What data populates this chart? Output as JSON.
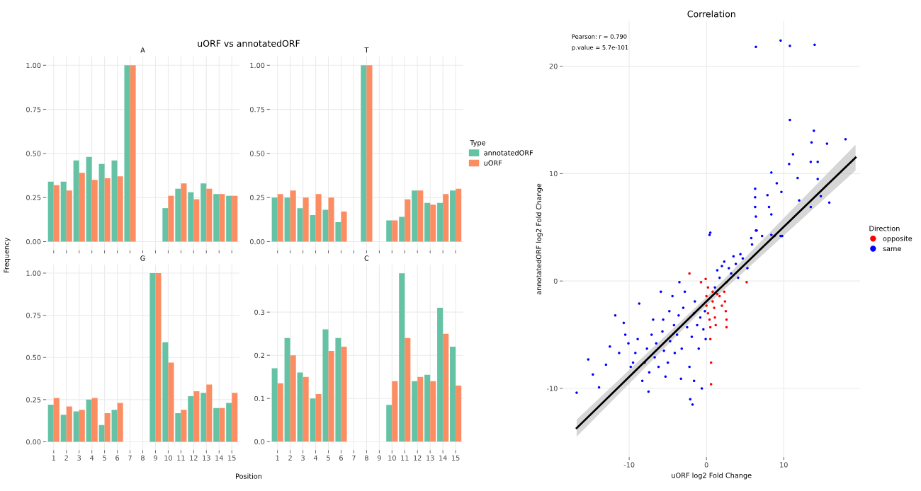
{
  "chart_data": [
    {
      "type": "bar",
      "title": "A",
      "annotations": [
        "uORF vs annotatedORF"
      ],
      "tick_labels": "y",
      "grid": true,
      "categories": [
        "1",
        "2",
        "3",
        "4",
        "5",
        "6",
        "7",
        "8",
        "9",
        "10",
        "11",
        "12",
        "13",
        "14",
        "15"
      ],
      "ylim": [
        -0.05,
        1.05
      ],
      "yticks": [
        {
          "value": 0,
          "label": "0.00"
        },
        {
          "value": 0.25,
          "label": "0.25"
        },
        {
          "value": 0.5,
          "label": "0.50"
        },
        {
          "value": 0.75,
          "label": "0.75"
        },
        {
          "value": 1,
          "label": "1.00"
        }
      ],
      "series": [
        {
          "color": "#66c2a5",
          "values": [
            0.34,
            0.34,
            0.46,
            0.48,
            0.44,
            0.46,
            1.0,
            null,
            null,
            0.19,
            0.3,
            0.28,
            0.33,
            0.27,
            0.26
          ]
        },
        {
          "color": "#fc8d62",
          "values": [
            0.32,
            0.29,
            0.39,
            0.35,
            0.36,
            0.37,
            1.0,
            null,
            null,
            0.26,
            0.33,
            0.24,
            0.3,
            0.27,
            0.26
          ]
        }
      ]
    },
    {
      "type": "bar",
      "title": "T",
      "tick_labels": "y",
      "grid": true,
      "legend": "right",
      "legend_title": "Type",
      "categories": [
        "1",
        "2",
        "3",
        "4",
        "5",
        "6",
        "7",
        "8",
        "9",
        "10",
        "11",
        "12",
        "13",
        "14",
        "15"
      ],
      "ylim": [
        -0.05,
        1.05
      ],
      "yticks": [
        {
          "value": 0,
          "label": "0.00"
        },
        {
          "value": 0.25,
          "label": "0.25"
        },
        {
          "value": 0.5,
          "label": "0.50"
        },
        {
          "value": 0.75,
          "label": "0.75"
        },
        {
          "value": 1,
          "label": "1.00"
        }
      ],
      "series": [
        {
          "name": "annotatedORF",
          "color": "#66c2a5",
          "values": [
            0.25,
            0.25,
            0.19,
            0.15,
            0.18,
            0.11,
            null,
            1.0,
            null,
            0.12,
            0.14,
            0.29,
            0.22,
            0.22,
            0.29
          ]
        },
        {
          "name": "uORF",
          "color": "#fc8d62",
          "values": [
            0.27,
            0.29,
            0.25,
            0.27,
            0.25,
            0.17,
            null,
            1.0,
            null,
            0.12,
            0.24,
            0.29,
            0.21,
            0.27,
            0.3
          ]
        }
      ]
    },
    {
      "type": "bar",
      "title": "G",
      "xlabel": "Position",
      "ylabel": "Frequency",
      "grid": true,
      "categories": [
        "1",
        "2",
        "3",
        "4",
        "5",
        "6",
        "7",
        "8",
        "9",
        "10",
        "11",
        "12",
        "13",
        "14",
        "15"
      ],
      "ylim": [
        -0.05,
        1.05
      ],
      "yticks": [
        {
          "value": 0,
          "label": "0.00"
        },
        {
          "value": 0.25,
          "label": "0.25"
        },
        {
          "value": 0.5,
          "label": "0.50"
        },
        {
          "value": 0.75,
          "label": "0.75"
        },
        {
          "value": 1,
          "label": "1.00"
        }
      ],
      "series": [
        {
          "color": "#66c2a5",
          "values": [
            0.22,
            0.16,
            0.18,
            0.25,
            0.1,
            0.19,
            null,
            null,
            1.0,
            0.59,
            0.17,
            0.27,
            0.29,
            0.2,
            0.23
          ]
        },
        {
          "color": "#fc8d62",
          "values": [
            0.26,
            0.21,
            0.19,
            0.26,
            0.17,
            0.23,
            null,
            null,
            1.0,
            0.47,
            0.19,
            0.3,
            0.34,
            0.2,
            0.29
          ]
        }
      ]
    },
    {
      "type": "bar",
      "title": "C",
      "grid": true,
      "categories": [
        "1",
        "2",
        "3",
        "4",
        "5",
        "6",
        "7",
        "8",
        "9",
        "10",
        "11",
        "12",
        "13",
        "14",
        "15"
      ],
      "ylim": [
        -0.02,
        0.41
      ],
      "yticks": [
        {
          "value": 0,
          "label": "0.0"
        },
        {
          "value": 0.1,
          "label": "0.1"
        },
        {
          "value": 0.2,
          "label": "0.2"
        },
        {
          "value": 0.3,
          "label": "0.3"
        }
      ],
      "series": [
        {
          "color": "#66c2a5",
          "values": [
            0.17,
            0.24,
            0.16,
            0.1,
            0.26,
            0.24,
            null,
            null,
            null,
            0.085,
            0.39,
            0.14,
            0.155,
            0.31,
            0.22
          ]
        },
        {
          "color": "#fc8d62",
          "values": [
            0.135,
            0.2,
            0.15,
            0.11,
            0.21,
            0.22,
            null,
            null,
            null,
            0.14,
            0.24,
            0.15,
            0.14,
            0.25,
            0.13
          ]
        }
      ]
    },
    {
      "type": "scatter",
      "title": "Correlation",
      "xlabel": "uORF log2 Fold Change",
      "ylabel": "annotatedORF log2 Fold Change",
      "annotations": [
        "Pearson: r = 0.790",
        "p.value = 5.7e-101"
      ],
      "grid": true,
      "legend": "right",
      "legend_title": "Direction",
      "marker": "circle",
      "xlim": [
        -18.6,
        19.9
      ],
      "ylim": [
        -16.4,
        24.2
      ],
      "xticks": [
        -10,
        0,
        10
      ],
      "yticks": [
        -10,
        0,
        10,
        20
      ],
      "series": [
        {
          "name": "opposite",
          "color": "#ff0000",
          "x": [
            -2.2,
            -0.1,
            0,
            0.2,
            0.4,
            0.5,
            0.5,
            0.6,
            0.6,
            0.8,
            0.8,
            1.0,
            1.1,
            1.2,
            1.4,
            1.7,
            2.0,
            2.3,
            2.4,
            2.5,
            2.6,
            2.6,
            0.2,
            -0.7,
            5.2,
            0
          ],
          "values": [
            0.7,
            0.2,
            -2.3,
            -3.0,
            -3.6,
            -4.3,
            -5.4,
            -7.6,
            -9.6,
            -1.0,
            -1.9,
            -2.5,
            -3.4,
            -4.1,
            -1.2,
            -1.4,
            -2.3,
            -1.0,
            -1.9,
            -2.8,
            -3.6,
            -4.3,
            -0.6,
            -0.1,
            -0.1,
            -1.4
          ]
        },
        {
          "name": "same",
          "color": "#0000ff",
          "x": [
            -16.8,
            -15.3,
            -14.7,
            -13.9,
            -13.0,
            -12.5,
            -11.8,
            -11.3,
            -10.7,
            -10.5,
            -10.1,
            -9.8,
            -9.5,
            -9.2,
            -8.9,
            -8.7,
            -8.3,
            -8.0,
            -7.7,
            -7.5,
            -7.4,
            -7.1,
            -6.9,
            -6.7,
            -6.5,
            -6.2,
            -5.9,
            -5.7,
            -5.5,
            -5.3,
            -5.0,
            -4.8,
            -4.7,
            -4.4,
            -4.2,
            -4.1,
            -3.8,
            -3.6,
            -3.3,
            -3.2,
            -3.0,
            -2.8,
            -2.5,
            -2.2,
            -2.1,
            -1.9,
            -1.8,
            -1.6,
            -1.5,
            -1.2,
            -1.0,
            -0.8,
            -0.6,
            -0.4,
            -0.2,
            -0.1,
            0.5,
            1.1,
            1.4,
            1.7,
            2.0,
            2.3,
            2.6,
            2.9,
            3.2,
            3.5,
            3.8,
            4.1,
            4.4,
            4.7,
            5.3,
            5.9,
            6.4,
            7.2,
            8.4,
            9.6,
            -3.5,
            -5.6,
            -1.6,
            6.4,
            9.6,
            10.8,
            14.0,
            10.8,
            13.9,
            13.6,
            15.6,
            18.0,
            11.2,
            10.7,
            13.5,
            14.4,
            9.1,
            11.8,
            8.4,
            9.7,
            14.4,
            14.8,
            15.9,
            13.5,
            6.3,
            6.3,
            6.3,
            6.4,
            7.9,
            8.1,
            8.4,
            6.5,
            8.8,
            9.8,
            0.4,
            5.8,
            12.0
          ],
          "values": [
            -10.4,
            -7.3,
            -8.7,
            -9.9,
            -7.8,
            -6.1,
            -3.2,
            -6.7,
            -3.9,
            -5.0,
            -5.8,
            -8.0,
            -7.6,
            -6.7,
            -5.4,
            -2.1,
            -9.3,
            -7.6,
            -6.3,
            -10.3,
            -8.5,
            -5.0,
            -3.6,
            -7.1,
            -5.8,
            -8.0,
            -1.0,
            -4.7,
            -6.5,
            -8.9,
            -7.6,
            -2.8,
            -5.6,
            -1.4,
            -4.1,
            -6.7,
            -5.0,
            -3.2,
            -9.1,
            -6.3,
            -2.5,
            -1.0,
            -4.3,
            -8.0,
            -11.0,
            -5.2,
            -11.5,
            -3.0,
            -1.9,
            -4.1,
            -6.3,
            -3.4,
            -10.0,
            -4.5,
            -2.8,
            -5.4,
            4.5,
            -0.6,
            1.0,
            0.3,
            1.4,
            1.8,
            -0.1,
            1.2,
            0.7,
            2.3,
            1.6,
            0.3,
            2.5,
            2.1,
            1.2,
            3.4,
            4.7,
            4.2,
            4.3,
            4.2,
            -0.1,
            -3.6,
            -9.3,
            21.8,
            22.4,
            21.9,
            22.0,
            15.0,
            14.0,
            12.9,
            12.8,
            13.2,
            11.8,
            10.9,
            11.1,
            11.1,
            9.1,
            9.6,
            10.1,
            8.3,
            9.5,
            7.9,
            7.3,
            6.9,
            8.6,
            7.8,
            6.9,
            6.0,
            8.0,
            6.9,
            6.2,
            4.7,
            4.2,
            4.2,
            4.3,
            4.0,
            7.5
          ]
        },
        {
          "type": "line",
          "marker": "none",
          "color": "#000000",
          "x": [
            -16.8,
            0,
            19.3
          ],
          "values": [
            -13.7,
            -1.9,
            11.5
          ],
          "lower": [
            -14.5,
            -2.3,
            10.3
          ],
          "upper": [
            -12.9,
            -1.5,
            12.7
          ]
        }
      ]
    }
  ]
}
